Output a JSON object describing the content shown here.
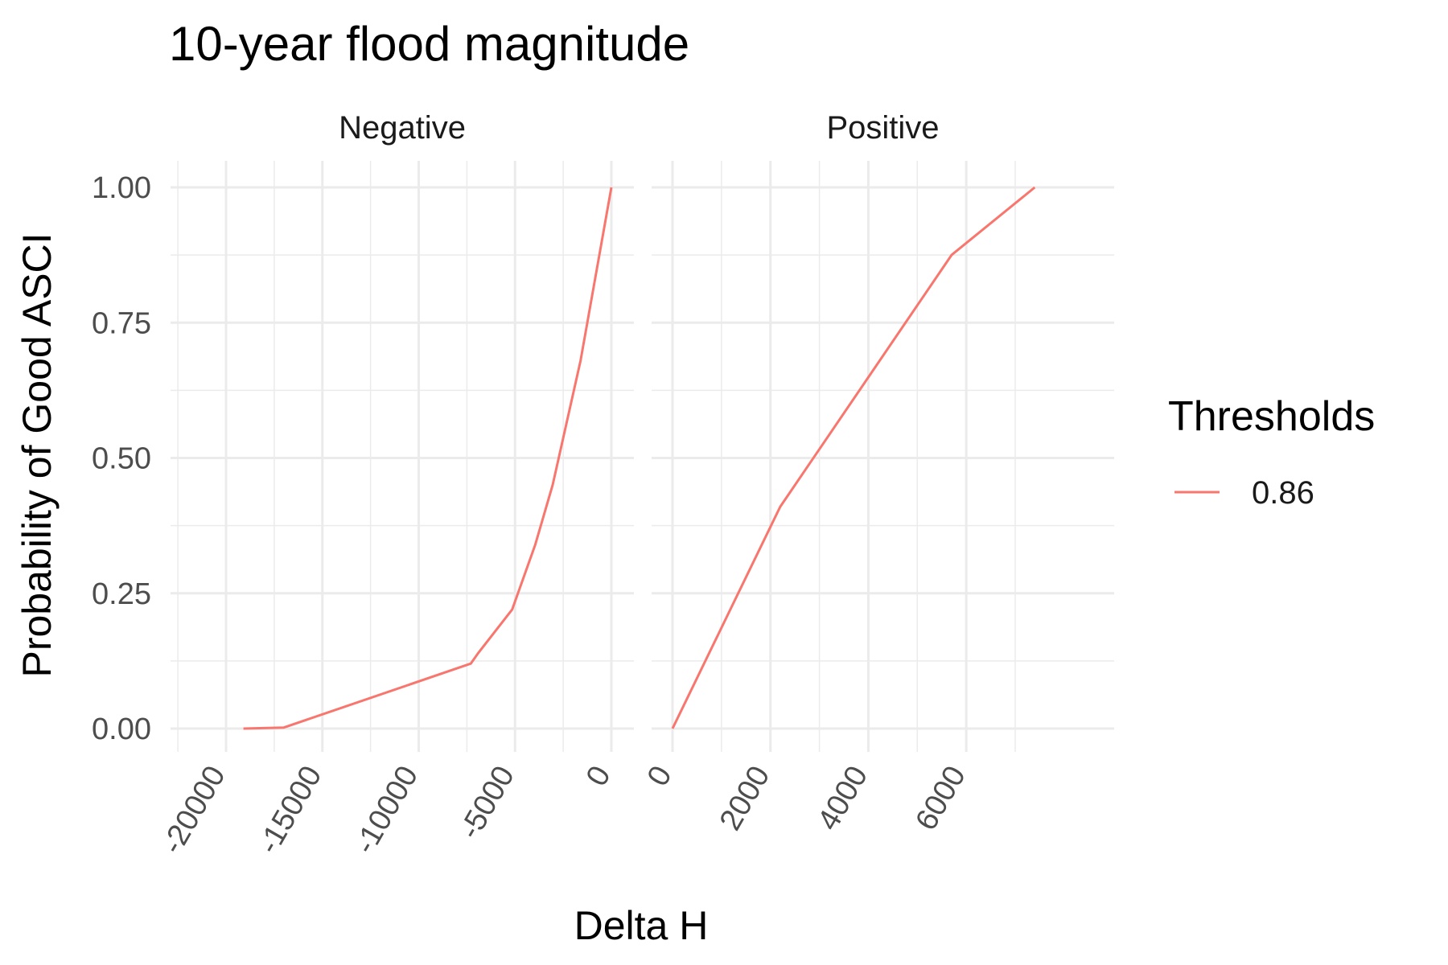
{
  "chart_data": {
    "type": "line",
    "title": "10-year flood magnitude",
    "xlabel": "Delta H",
    "ylabel": "Probability of Good ASCI",
    "y_ticks": [
      "0.00",
      "0.25",
      "0.50",
      "0.75",
      "1.00"
    ],
    "ylim": [
      0,
      1
    ],
    "grid": true,
    "legend": {
      "title": "Thresholds",
      "position": "right"
    },
    "colors": {
      "series": "#F8766D"
    },
    "panels": [
      {
        "label": "Negative",
        "xlim": [
          -20000,
          0
        ],
        "x_ticks": [
          "-20000",
          "-15000",
          "-10000",
          "-5000",
          "0"
        ],
        "series": [
          {
            "name": "0.86",
            "x": [
              -19100,
              -17000,
              -7300,
              -6900,
              -5150,
              -3950,
              -3050,
              -1600,
              0
            ],
            "y": [
              0.0,
              0.002,
              0.12,
              0.14,
              0.22,
              0.34,
              0.45,
              0.68,
              1.0
            ]
          }
        ]
      },
      {
        "label": "Positive",
        "xlim": [
          0,
          7000
        ],
        "x_ticks": [
          "0",
          "2000",
          "4000",
          "6000"
        ],
        "series": [
          {
            "name": "0.86",
            "x": [
              0,
              2200,
              5700,
              7400
            ],
            "y": [
              0.0,
              0.41,
              0.875,
              1.0
            ]
          }
        ]
      }
    ]
  }
}
